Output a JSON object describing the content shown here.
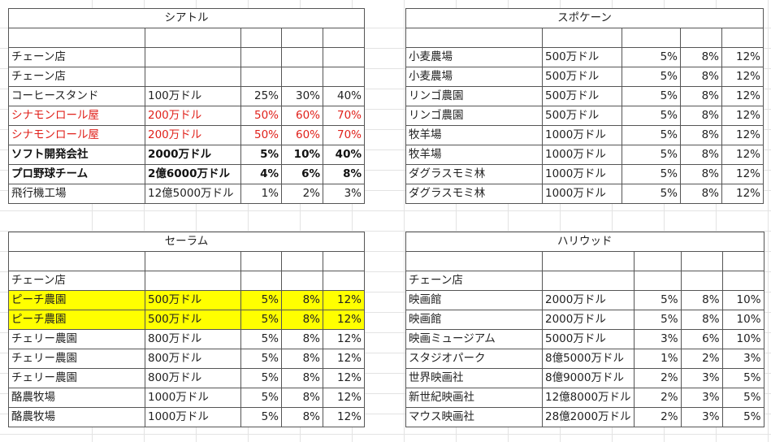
{
  "blocks": {
    "seattle": {
      "title": "シアトル",
      "rows": [
        {
          "style": "",
          "name": "",
          "value": "",
          "p1": "",
          "p2": "",
          "p3": ""
        },
        {
          "style": "",
          "name": "チェーン店",
          "value": "",
          "p1": "",
          "p2": "",
          "p3": ""
        },
        {
          "style": "",
          "name": "チェーン店",
          "value": "",
          "p1": "",
          "p2": "",
          "p3": ""
        },
        {
          "style": "",
          "name": "コーヒースタンド",
          "value": "100万ドル",
          "p1": "25%",
          "p2": "30%",
          "p3": "40%"
        },
        {
          "style": "red",
          "name": "シナモンロール屋",
          "value": "200万ドル",
          "p1": "50%",
          "p2": "60%",
          "p3": "70%"
        },
        {
          "style": "red",
          "name": "シナモンロール屋",
          "value": "200万ドル",
          "p1": "50%",
          "p2": "60%",
          "p3": "70%"
        },
        {
          "style": "bold",
          "name": "ソフト開発会社",
          "value": "2000万ドル",
          "p1": "5%",
          "p2": "10%",
          "p3": "40%"
        },
        {
          "style": "bold",
          "name": "プロ野球チーム",
          "value": "2億6000万ドル",
          "p1": "4%",
          "p2": "6%",
          "p3": "8%"
        },
        {
          "style": "",
          "name": "飛行機工場",
          "value": "12億5000万ドル",
          "p1": "1%",
          "p2": "2%",
          "p3": "3%"
        }
      ]
    },
    "spokane": {
      "title": "スポケーン",
      "rows": [
        {
          "style": "",
          "name": "",
          "value": "",
          "p1": "",
          "p2": "",
          "p3": ""
        },
        {
          "style": "",
          "name": "小麦農場",
          "value": "500万ドル",
          "p1": "5%",
          "p2": "8%",
          "p3": "12%"
        },
        {
          "style": "",
          "name": "小麦農場",
          "value": "500万ドル",
          "p1": "5%",
          "p2": "8%",
          "p3": "12%"
        },
        {
          "style": "",
          "name": "リンゴ農園",
          "value": "500万ドル",
          "p1": "5%",
          "p2": "8%",
          "p3": "12%"
        },
        {
          "style": "",
          "name": "リンゴ農園",
          "value": "500万ドル",
          "p1": "5%",
          "p2": "8%",
          "p3": "12%"
        },
        {
          "style": "",
          "name": "牧羊場",
          "value": "1000万ドル",
          "p1": "5%",
          "p2": "8%",
          "p3": "12%"
        },
        {
          "style": "",
          "name": "牧羊場",
          "value": "1000万ドル",
          "p1": "5%",
          "p2": "8%",
          "p3": "12%"
        },
        {
          "style": "",
          "name": "ダグラスモミ林",
          "value": "1000万ドル",
          "p1": "5%",
          "p2": "8%",
          "p3": "12%"
        },
        {
          "style": "",
          "name": "ダグラスモミ林",
          "value": "1000万ドル",
          "p1": "5%",
          "p2": "8%",
          "p3": "12%"
        }
      ]
    },
    "salem": {
      "title": "セーラム",
      "rows": [
        {
          "style": "",
          "name": "",
          "value": "",
          "p1": "",
          "p2": "",
          "p3": ""
        },
        {
          "style": "",
          "name": "チェーン店",
          "value": "",
          "p1": "",
          "p2": "",
          "p3": ""
        },
        {
          "style": "hl",
          "name": "ピーチ農園",
          "value": "500万ドル",
          "p1": "5%",
          "p2": "8%",
          "p3": "12%"
        },
        {
          "style": "hl",
          "name": "ピーチ農園",
          "value": "500万ドル",
          "p1": "5%",
          "p2": "8%",
          "p3": "12%"
        },
        {
          "style": "",
          "name": "チェリー農園",
          "value": "800万ドル",
          "p1": "5%",
          "p2": "8%",
          "p3": "12%"
        },
        {
          "style": "",
          "name": "チェリー農園",
          "value": "800万ドル",
          "p1": "5%",
          "p2": "8%",
          "p3": "12%"
        },
        {
          "style": "",
          "name": "チェリー農園",
          "value": "800万ドル",
          "p1": "5%",
          "p2": "8%",
          "p3": "12%"
        },
        {
          "style": "",
          "name": "酪農牧場",
          "value": "1000万ドル",
          "p1": "5%",
          "p2": "8%",
          "p3": "12%"
        },
        {
          "style": "",
          "name": "酪農牧場",
          "value": "1000万ドル",
          "p1": "5%",
          "p2": "8%",
          "p3": "12%"
        }
      ]
    },
    "hollywood": {
      "title": "ハリウッド",
      "rows": [
        {
          "style": "",
          "name": "",
          "value": "",
          "p1": "",
          "p2": "",
          "p3": ""
        },
        {
          "style": "",
          "name": "チェーン店",
          "value": "",
          "p1": "",
          "p2": "",
          "p3": ""
        },
        {
          "style": "",
          "name": "映画館",
          "value": "2000万ドル",
          "p1": "5%",
          "p2": "8%",
          "p3": "10%"
        },
        {
          "style": "",
          "name": "映画館",
          "value": "2000万ドル",
          "p1": "5%",
          "p2": "8%",
          "p3": "10%"
        },
        {
          "style": "",
          "name": "映画ミュージアム",
          "value": "5000万ドル",
          "p1": "3%",
          "p2": "6%",
          "p3": "10%"
        },
        {
          "style": "",
          "name": "スタジオパーク",
          "value": "8億5000万ドル",
          "p1": "1%",
          "p2": "2%",
          "p3": "3%"
        },
        {
          "style": "",
          "name": "世界映画社",
          "value": "8億9000万ドル",
          "p1": "2%",
          "p2": "3%",
          "p3": "5%"
        },
        {
          "style": "",
          "name": "新世紀映画社",
          "value": "12億8000万ドル",
          "p1": "2%",
          "p2": "3%",
          "p3": "5%"
        },
        {
          "style": "",
          "name": "マウス映画社",
          "value": "28億2000万ドル",
          "p1": "2%",
          "p2": "3%",
          "p3": "5%"
        }
      ]
    }
  }
}
